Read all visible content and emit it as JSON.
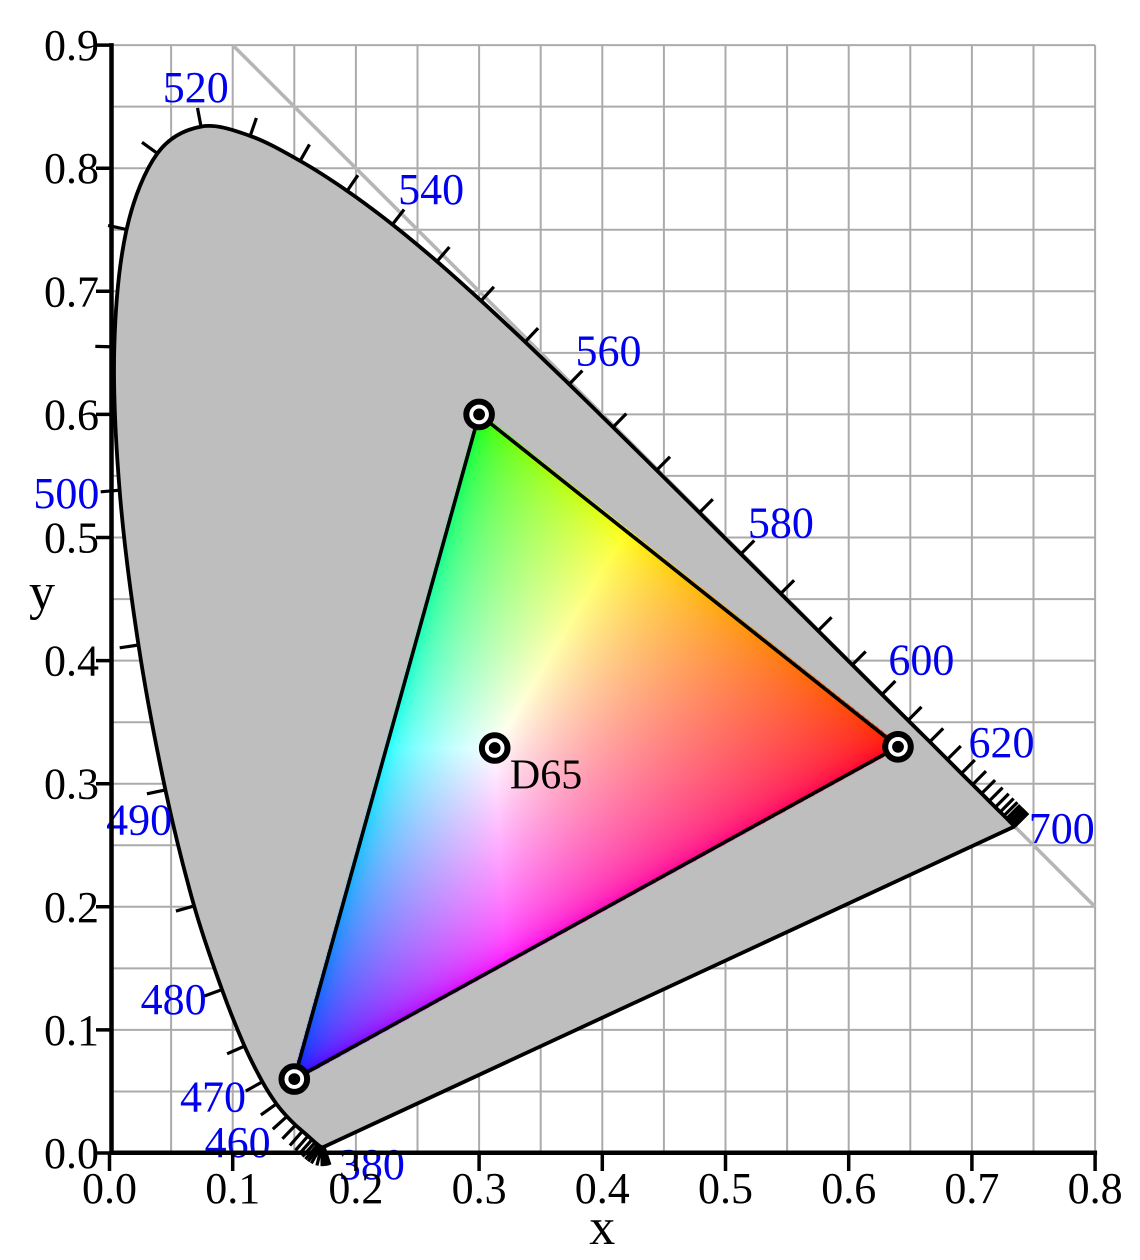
{
  "chart_data": {
    "type": "area",
    "subtype": "CIE 1931 xy chromaticity diagram with sRGB gamut triangle",
    "xlabel": "x",
    "ylabel": "y",
    "xlim": [
      0.0,
      0.8
    ],
    "ylim": [
      0.0,
      0.9
    ],
    "grid": "on",
    "grid_step": 0.05,
    "x_tick_labels": [
      "0.0",
      "0.1",
      "0.2",
      "0.3",
      "0.4",
      "0.5",
      "0.6",
      "0.7",
      "0.8"
    ],
    "y_tick_labels": [
      "0.0",
      "0.1",
      "0.2",
      "0.3",
      "0.4",
      "0.5",
      "0.6",
      "0.7",
      "0.8",
      "0.9"
    ],
    "white_point": {
      "label": "D65",
      "x": 0.3127,
      "y": 0.329
    },
    "d65_label_pos": {
      "x": 0.325,
      "y": 0.296
    },
    "gamut_triangle": {
      "red": [
        0.64,
        0.33
      ],
      "green": [
        0.3,
        0.6
      ],
      "blue": [
        0.15,
        0.06
      ]
    },
    "diagonal_line": {
      "from": [
        0.1,
        0.9
      ],
      "to": [
        0.8,
        0.2
      ]
    },
    "wavelength_labels": [
      {
        "nm": "380",
        "x": 0.213,
        "y": -0.009
      },
      {
        "nm": "460",
        "x": 0.104,
        "y": 0.009
      },
      {
        "nm": "470",
        "x": 0.084,
        "y": 0.046
      },
      {
        "nm": "480",
        "x": 0.052,
        "y": 0.125
      },
      {
        "nm": "490",
        "x": 0.024,
        "y": 0.271
      },
      {
        "nm": "500",
        "x": -0.035,
        "y": 0.536
      },
      {
        "nm": "520",
        "x": 0.07,
        "y": 0.866
      },
      {
        "nm": "540",
        "x": 0.261,
        "y": 0.783
      },
      {
        "nm": "560",
        "x": 0.405,
        "y": 0.652
      },
      {
        "nm": "580",
        "x": 0.545,
        "y": 0.512
      },
      {
        "nm": "600",
        "x": 0.659,
        "y": 0.401
      },
      {
        "nm": "620",
        "x": 0.724,
        "y": 0.334
      },
      {
        "nm": "700",
        "x": 0.773,
        "y": 0.264
      }
    ],
    "spectral_locus": [
      [
        380,
        0.1741,
        0.005
      ],
      [
        385,
        0.174,
        0.005
      ],
      [
        390,
        0.1738,
        0.0049
      ],
      [
        395,
        0.1736,
        0.0049
      ],
      [
        400,
        0.1733,
        0.0048
      ],
      [
        405,
        0.173,
        0.0048
      ],
      [
        410,
        0.1726,
        0.0048
      ],
      [
        415,
        0.1721,
        0.0048
      ],
      [
        420,
        0.1714,
        0.0051
      ],
      [
        425,
        0.1703,
        0.0058
      ],
      [
        430,
        0.1689,
        0.0069
      ],
      [
        435,
        0.1669,
        0.0086
      ],
      [
        440,
        0.1644,
        0.0109
      ],
      [
        445,
        0.1611,
        0.0138
      ],
      [
        450,
        0.1566,
        0.0177
      ],
      [
        455,
        0.151,
        0.0227
      ],
      [
        460,
        0.144,
        0.0297
      ],
      [
        465,
        0.1355,
        0.0399
      ],
      [
        470,
        0.1241,
        0.0578
      ],
      [
        475,
        0.1096,
        0.0868
      ],
      [
        480,
        0.0913,
        0.1327
      ],
      [
        485,
        0.0687,
        0.2007
      ],
      [
        490,
        0.0454,
        0.295
      ],
      [
        495,
        0.0235,
        0.4127
      ],
      [
        500,
        0.0082,
        0.5384
      ],
      [
        505,
        0.0039,
        0.6548
      ],
      [
        510,
        0.0139,
        0.7502
      ],
      [
        515,
        0.0389,
        0.812
      ],
      [
        520,
        0.0743,
        0.8338
      ],
      [
        525,
        0.1142,
        0.8262
      ],
      [
        530,
        0.1547,
        0.8059
      ],
      [
        535,
        0.1929,
        0.7816
      ],
      [
        540,
        0.2296,
        0.7543
      ],
      [
        545,
        0.2658,
        0.7243
      ],
      [
        550,
        0.3016,
        0.6923
      ],
      [
        555,
        0.3373,
        0.6589
      ],
      [
        560,
        0.3731,
        0.6245
      ],
      [
        565,
        0.4087,
        0.5896
      ],
      [
        570,
        0.4441,
        0.5547
      ],
      [
        575,
        0.4788,
        0.5202
      ],
      [
        580,
        0.5125,
        0.4866
      ],
      [
        585,
        0.5448,
        0.4544
      ],
      [
        590,
        0.5752,
        0.4242
      ],
      [
        595,
        0.6029,
        0.3965
      ],
      [
        600,
        0.627,
        0.3725
      ],
      [
        605,
        0.6482,
        0.3514
      ],
      [
        610,
        0.6658,
        0.334
      ],
      [
        615,
        0.6801,
        0.3197
      ],
      [
        620,
        0.6915,
        0.3083
      ],
      [
        625,
        0.7006,
        0.2993
      ],
      [
        630,
        0.7079,
        0.292
      ],
      [
        635,
        0.714,
        0.2859
      ],
      [
        640,
        0.719,
        0.2809
      ],
      [
        645,
        0.723,
        0.277
      ],
      [
        650,
        0.726,
        0.274
      ],
      [
        655,
        0.7283,
        0.2717
      ],
      [
        660,
        0.73,
        0.27
      ],
      [
        665,
        0.7311,
        0.2689
      ],
      [
        670,
        0.732,
        0.268
      ],
      [
        675,
        0.7327,
        0.2673
      ],
      [
        680,
        0.7334,
        0.2666
      ],
      [
        685,
        0.734,
        0.266
      ],
      [
        690,
        0.7344,
        0.2656
      ],
      [
        695,
        0.7346,
        0.2654
      ],
      [
        700,
        0.7347,
        0.2653
      ]
    ],
    "colors": {
      "wavelength_label": "#0000ee",
      "locus_fill": "#bebebe",
      "grid_line": "#ababab",
      "diagonal_line": "#b6b6b6",
      "outline": "#000000",
      "background": "#ffffff"
    }
  }
}
